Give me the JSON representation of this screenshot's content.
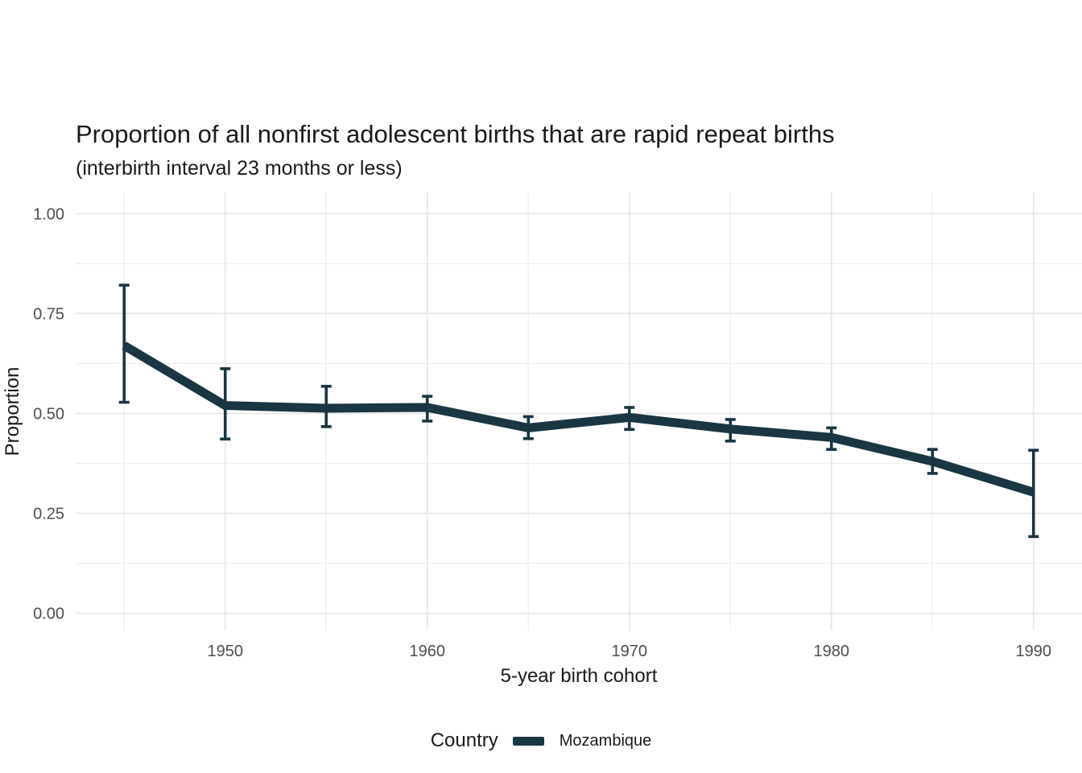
{
  "title": "Proportion of all nonfirst adolescent births that are rapid repeat births",
  "subtitle": "(interbirth interval 23 months or less)",
  "chart_data": {
    "type": "line",
    "title": "Proportion of all nonfirst adolescent births that are rapid repeat births",
    "subtitle": "(interbirth interval 23 months or less)",
    "xlabel": "5-year birth cohort",
    "ylabel": "Proportion",
    "xlim": [
      1942.6,
      1992.4
    ],
    "ylim": [
      -0.043,
      1.053
    ],
    "grid": true,
    "x_major_ticks": [
      1950,
      1960,
      1970,
      1980,
      1990
    ],
    "x_minor_gridlines": [
      1945,
      1955,
      1965,
      1975,
      1985
    ],
    "y_major_ticks": [
      0,
      0.25,
      0.5,
      0.75,
      1.0
    ],
    "y_tick_labels": [
      "0.00",
      "0.25",
      "0.50",
      "0.75",
      "1.00"
    ],
    "y_minor_gridlines": [
      0.125,
      0.375,
      0.625,
      0.875
    ],
    "grid_major_color": "#e6e6e6",
    "grid_minor_color": "#efefef",
    "tick_label_color": "#4d4d4d",
    "axis_title_color": "#1a1a1a",
    "legend_position": "bottom",
    "legend_title": "Country",
    "series": [
      {
        "name": "Mozambique",
        "color": "#193642",
        "x": [
          1945,
          1950,
          1955,
          1960,
          1965,
          1970,
          1975,
          1980,
          1985,
          1990
        ],
        "y": [
          0.67,
          0.52,
          0.513,
          0.515,
          0.464,
          0.49,
          0.461,
          0.44,
          0.38,
          0.303
        ],
        "err_low": [
          0.528,
          0.436,
          0.467,
          0.481,
          0.437,
          0.46,
          0.431,
          0.41,
          0.35,
          0.192
        ],
        "err_high": [
          0.821,
          0.612,
          0.568,
          0.543,
          0.492,
          0.515,
          0.485,
          0.464,
          0.41,
          0.408
        ]
      }
    ]
  }
}
